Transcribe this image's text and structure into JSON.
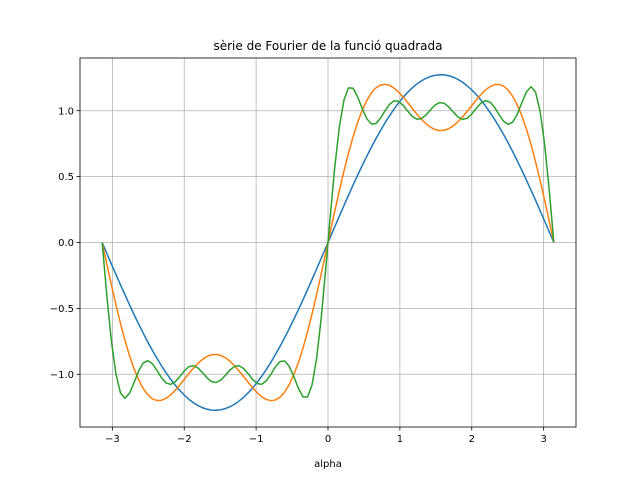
{
  "chart_data": {
    "type": "line",
    "title": "sèrie de Fourier de la funció quadrada",
    "xlabel": "alpha",
    "ylabel": "",
    "xlim": [
      -3.45,
      3.45
    ],
    "ylim": [
      -1.4,
      1.4
    ],
    "xticks": [
      -3,
      -2,
      -1,
      0,
      1,
      2,
      3
    ],
    "xtick_labels": [
      "−3",
      "−2",
      "−1",
      "0",
      "1",
      "2",
      "3"
    ],
    "yticks": [
      -1.0,
      -0.5,
      0.0,
      0.5,
      1.0
    ],
    "ytick_labels": [
      "−1.0",
      "−0.5",
      "0.0",
      "0.5",
      "1.0"
    ],
    "grid": true,
    "domain": [
      -3.14159,
      3.14159
    ],
    "series": [
      {
        "terms": 1,
        "color": "#1f77b4"
      },
      {
        "terms": 2,
        "color": "#ff7f0e"
      },
      {
        "terms": 5,
        "color": "#2ca02c"
      }
    ]
  }
}
